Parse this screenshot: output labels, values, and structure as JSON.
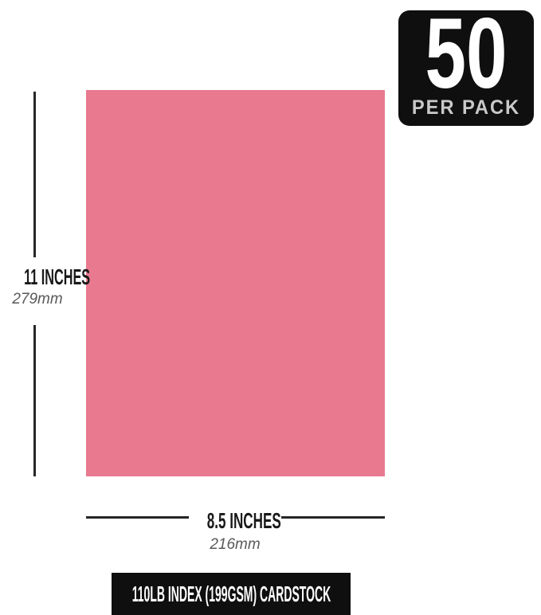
{
  "badge": {
    "count": "50",
    "label": "PER PACK"
  },
  "sheet": {
    "description": "pink cardstock sheet swatch"
  },
  "height_dim": {
    "inches": "11 INCHES",
    "mm": "279mm"
  },
  "width_dim": {
    "inches": "8.5 INCHES",
    "mm": "216mm"
  },
  "footer": {
    "label": "110LB INDEX (199GSM) CARDSTOCK"
  },
  "colors": {
    "background": "#ffffff",
    "sheet_pink": "#e8798f",
    "badge_bg": "#0f0f0f",
    "badge_count": "#ffffff",
    "badge_label": "#c9c9c9",
    "dim_line": "#262626",
    "dim_text": "#191919",
    "metric_text": "#595959",
    "footer_bg": "#0f0f0f",
    "footer_text": "#ffffff"
  }
}
